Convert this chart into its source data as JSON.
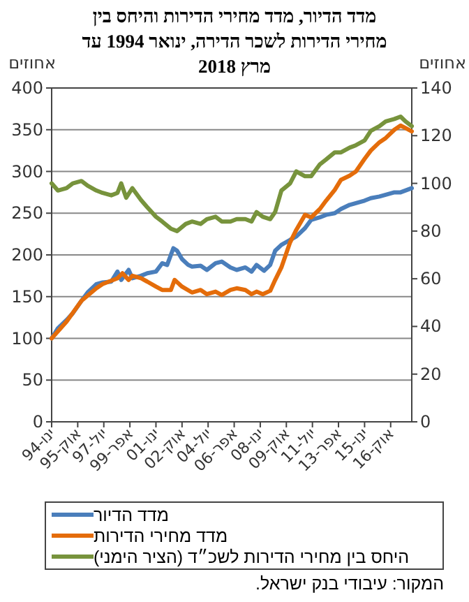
{
  "chart_data": {
    "type": "line",
    "title": "מדד הדיור, מדד מחירי הדירות והיחס בין מחירי הדירות לשכר הדירה, ינואר 1994 עד מרץ 2018",
    "ylabel": "אחוזים",
    "y2label": "אחוזים",
    "annotations": [
      "המקור: עיבודי בנק ישראל."
    ],
    "xlim": [
      "1994-01",
      "2018-03"
    ],
    "xticks": [
      {
        "value": "1994-01",
        "label": "ינו-94"
      },
      {
        "value": "1995-10",
        "label": "אוק-95"
      },
      {
        "value": "1997-07",
        "label": "יול-97"
      },
      {
        "value": "1999-04",
        "label": "אפר-99"
      },
      {
        "value": "2001-01",
        "label": "ינו-01"
      },
      {
        "value": "2002-10",
        "label": "אוק-02"
      },
      {
        "value": "2004-07",
        "label": "יול-04"
      },
      {
        "value": "2006-04",
        "label": "אפר-06"
      },
      {
        "value": "2008-01",
        "label": "ינו-08"
      },
      {
        "value": "2009-10",
        "label": "אוק-09"
      },
      {
        "value": "2011-07",
        "label": "יול-11"
      },
      {
        "value": "2013-04",
        "label": "אפר-13"
      },
      {
        "value": "2015-01",
        "label": "ינו-15"
      },
      {
        "value": "2016-10",
        "label": "אוק-16"
      }
    ],
    "ylim": [
      0,
      400
    ],
    "yticks": [
      0,
      50,
      100,
      150,
      200,
      250,
      300,
      350,
      400
    ],
    "y2lim": [
      0,
      140
    ],
    "y2ticks": [
      0,
      20,
      40,
      60,
      80,
      100,
      120,
      140
    ],
    "grid": "y",
    "legend": "bottom",
    "marker": "none",
    "line_style": "solid",
    "series": [
      {
        "name": "מדד הדיור",
        "color": "#4a7ebb",
        "x": [
          "1994-01",
          "1994-06",
          "1995-01",
          "1995-06",
          "1996-01",
          "1996-06",
          "1997-01",
          "1997-06",
          "1998-01",
          "1998-06",
          "1998-09",
          "1999-03",
          "1999-06",
          "2000-01",
          "2000-06",
          "2001-01",
          "2001-06",
          "2001-10",
          "2002-03",
          "2002-06",
          "2002-10",
          "2003-03",
          "2003-06",
          "2004-01",
          "2004-06",
          "2005-01",
          "2005-06",
          "2006-01",
          "2006-06",
          "2007-01",
          "2007-06",
          "2007-10",
          "2008-04",
          "2008-09",
          "2009-01",
          "2009-06",
          "2010-01",
          "2010-06",
          "2011-01",
          "2011-06",
          "2012-01",
          "2012-06",
          "2013-01",
          "2013-06",
          "2014-01",
          "2014-06",
          "2015-01",
          "2015-06",
          "2016-01",
          "2016-06",
          "2017-01",
          "2017-06",
          "2018-03"
        ],
        "values": [
          100,
          112,
          122,
          130,
          145,
          155,
          165,
          167,
          168,
          180,
          170,
          182,
          172,
          175,
          178,
          180,
          190,
          188,
          208,
          205,
          195,
          188,
          186,
          187,
          182,
          190,
          192,
          185,
          182,
          185,
          180,
          188,
          181,
          188,
          205,
          212,
          218,
          222,
          232,
          242,
          245,
          248,
          250,
          255,
          260,
          262,
          265,
          268,
          270,
          272,
          275,
          275,
          280
        ]
      },
      {
        "name": "מדד מחירי הדירות",
        "color": "#e46c0a",
        "x": [
          "1994-01",
          "1995-01",
          "1996-01",
          "1997-01",
          "1997-06",
          "1998-06",
          "1998-10",
          "1999-03",
          "1999-06",
          "2000-01",
          "2000-06",
          "2001-01",
          "2001-06",
          "2002-01",
          "2002-04",
          "2002-10",
          "2003-06",
          "2004-01",
          "2004-06",
          "2005-01",
          "2005-06",
          "2006-01",
          "2006-06",
          "2007-01",
          "2007-06",
          "2007-10",
          "2008-03",
          "2008-09",
          "2009-01",
          "2009-06",
          "2010-01",
          "2010-06",
          "2011-01",
          "2011-06",
          "2012-01",
          "2012-06",
          "2013-01",
          "2013-06",
          "2014-01",
          "2014-06",
          "2015-01",
          "2015-06",
          "2016-01",
          "2016-06",
          "2017-01",
          "2017-06",
          "2017-10",
          "2018-03"
        ],
        "values": [
          100,
          120,
          145,
          160,
          165,
          172,
          178,
          170,
          175,
          172,
          168,
          162,
          158,
          158,
          170,
          162,
          155,
          158,
          153,
          156,
          152,
          158,
          160,
          158,
          153,
          156,
          153,
          157,
          170,
          185,
          215,
          230,
          248,
          245,
          255,
          265,
          278,
          290,
          295,
          300,
          315,
          325,
          335,
          340,
          350,
          355,
          352,
          348
        ]
      },
      {
        "name": "היחס בין מחירי הדירות לשכ״ד (הציר הימני)",
        "color": "#77933c",
        "axis": "y2",
        "x": [
          "1994-01",
          "1994-06",
          "1995-01",
          "1995-06",
          "1996-01",
          "1996-06",
          "1997-01",
          "1997-06",
          "1998-01",
          "1998-06",
          "1998-09",
          "1999-01",
          "1999-06",
          "2000-01",
          "2000-06",
          "2001-01",
          "2001-06",
          "2002-01",
          "2002-06",
          "2003-01",
          "2003-06",
          "2004-01",
          "2004-06",
          "2005-01",
          "2005-06",
          "2006-01",
          "2006-06",
          "2007-01",
          "2007-06",
          "2007-10",
          "2008-03",
          "2008-09",
          "2009-01",
          "2009-06",
          "2010-01",
          "2010-06",
          "2011-01",
          "2011-06",
          "2012-01",
          "2012-06",
          "2013-01",
          "2013-06",
          "2014-01",
          "2014-06",
          "2015-01",
          "2015-06",
          "2016-01",
          "2016-06",
          "2017-01",
          "2017-06",
          "2017-10",
          "2018-03"
        ],
        "values": [
          100,
          97,
          98,
          100,
          101,
          99,
          97,
          96,
          95,
          96,
          100,
          94,
          98,
          93,
          90,
          86,
          84,
          81,
          80,
          83,
          84,
          83,
          85,
          86,
          84,
          84,
          85,
          85,
          84,
          88,
          86,
          85,
          88,
          97,
          100,
          105,
          103,
          103,
          108,
          110,
          113,
          113,
          115,
          116,
          118,
          122,
          124,
          126,
          127,
          128,
          126,
          124
        ]
      }
    ]
  }
}
